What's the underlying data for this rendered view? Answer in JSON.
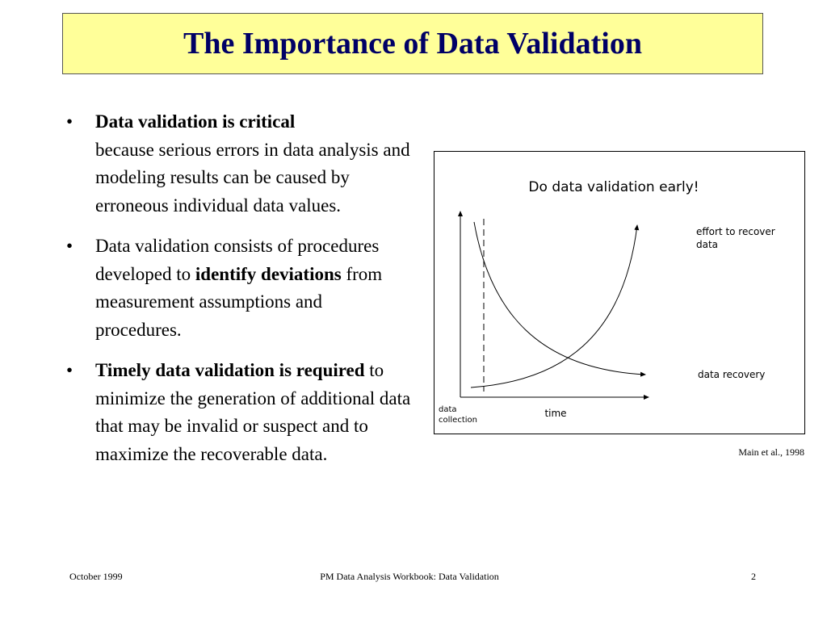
{
  "title": "The Importance of Data Validation",
  "bullets": [
    {
      "runs": [
        {
          "text": "Data validation is critical",
          "bold": true
        },
        {
          "text": "because serious errors in data analysis and modeling results can be caused by erroneous individual data values.",
          "bold": false
        }
      ]
    },
    {
      "runs": [
        {
          "text": "Data validation consists of procedures developed to",
          "bold": false
        },
        {
          "text": "identify deviations",
          "bold": true
        },
        {
          "text": "from measurement assumptions and procedures.",
          "bold": false
        }
      ]
    },
    {
      "runs": [
        {
          "text": "Timely data validation is required",
          "bold": true
        },
        {
          "text": "to minimize the generation of additional data that may be invalid or suspect and to maximize the recoverable data.",
          "bold": false
        }
      ]
    }
  ],
  "figure": {
    "title": "Do data validation early!",
    "curve_up_label": "effort to recover data",
    "curve_down_label": "data recovery",
    "x_axis_label": "time",
    "marker_label": "data collection"
  },
  "citation": "Main et al., 1998",
  "footer": {
    "left": "October 1999",
    "center": "PM Data Analysis Workbook:  Data Validation",
    "right": "2"
  }
}
